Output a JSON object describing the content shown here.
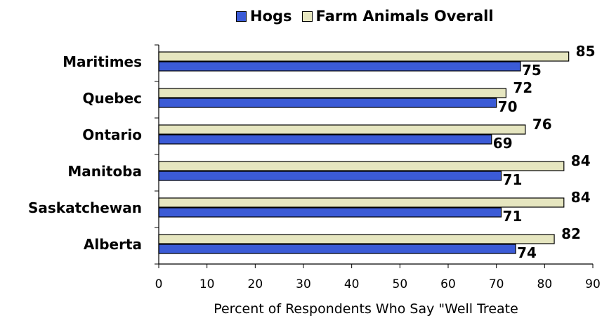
{
  "chart_data": {
    "type": "bar",
    "orientation": "horizontal",
    "categories": [
      "Maritimes",
      "Quebec",
      "Ontario",
      "Manitoba",
      "Saskatchewan",
      "Alberta"
    ],
    "series": [
      {
        "name": "Hogs",
        "color": "#3b5bd6",
        "values": [
          75,
          70,
          69,
          71,
          71,
          74
        ]
      },
      {
        "name": "Farm Animals Overall",
        "color": "#e6e6c0",
        "values": [
          85,
          72,
          76,
          84,
          84,
          82
        ]
      }
    ],
    "xlabel": "Percent of Respondents Who Say \"Well Treate",
    "xlim": [
      0,
      90
    ],
    "xticks": [
      0,
      10,
      20,
      30,
      40,
      50,
      60,
      70,
      80,
      90
    ],
    "legend_position": "top",
    "grid": false
  }
}
